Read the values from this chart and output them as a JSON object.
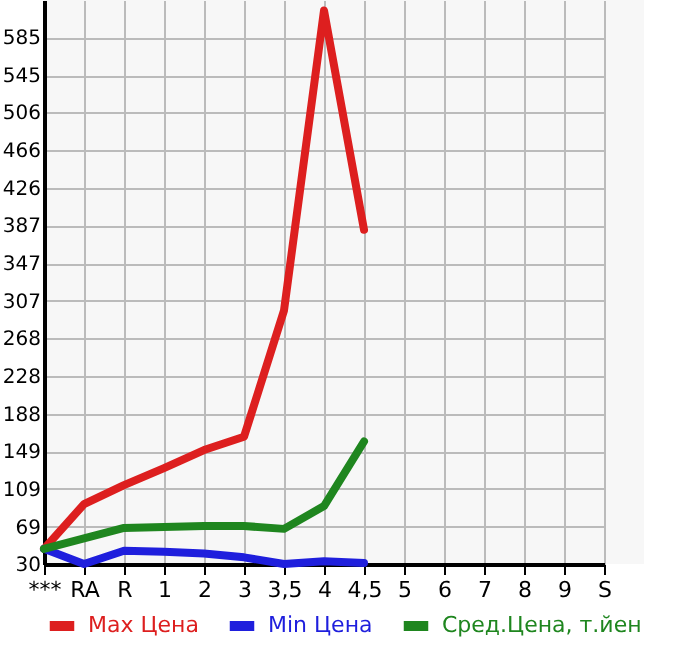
{
  "chart_data": {
    "type": "line",
    "categories": [
      "***",
      "RA",
      "R",
      "1",
      "2",
      "3",
      "3,5",
      "4",
      "4,5",
      "5",
      "6",
      "7",
      "8",
      "9",
      "S"
    ],
    "series": [
      {
        "name": "Max Цена",
        "color": "#dd1f1f",
        "values": [
          46,
          93,
          113,
          131,
          150,
          164,
          297,
          613,
          382,
          null,
          null,
          null,
          null,
          null,
          null
        ]
      },
      {
        "name": "Min Цена",
        "color": "#1f1fdd",
        "values": [
          46,
          30,
          44,
          43,
          41,
          37,
          30,
          33,
          31,
          null,
          null,
          null,
          null,
          null,
          null
        ]
      },
      {
        "name": "Сред.Цена, т.йен",
        "color": "#1f861f",
        "values": [
          46,
          57,
          68,
          69,
          70,
          70,
          67,
          91,
          159,
          null,
          null,
          null,
          null,
          null,
          null
        ]
      }
    ],
    "ylim": [
      30,
      624
    ],
    "yticks": [
      30,
      69,
      109,
      149,
      188,
      228,
      268,
      307,
      347,
      387,
      426,
      466,
      506,
      545,
      585
    ],
    "grid": true,
    "legend": "bottom",
    "marker": "none",
    "line_style": "solid"
  }
}
